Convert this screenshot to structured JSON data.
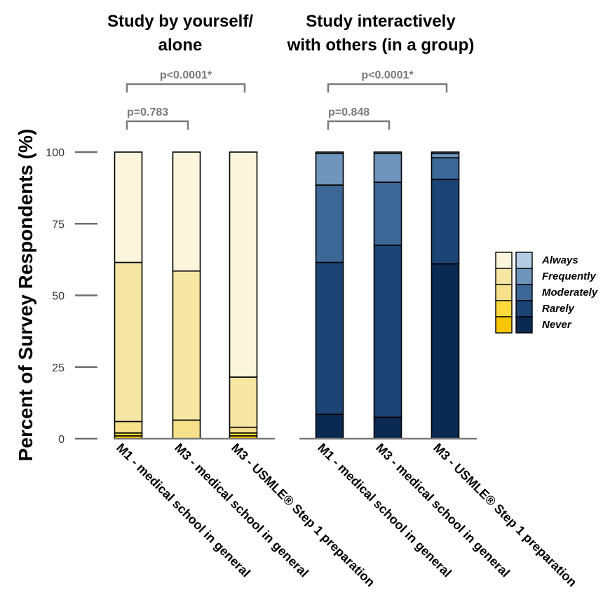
{
  "chart_data": {
    "type": "bar",
    "stacked": true,
    "ylabel": "Percent of Survey Respondents (%)",
    "yticks": [
      0,
      25,
      50,
      75,
      100
    ],
    "ylim": [
      0,
      100
    ],
    "categories": [
      "M1 - medical school in general",
      "M3 - medical school in general",
      "M3 - USMLE® Step 1 preparation"
    ],
    "levels": [
      "Never",
      "Rarely",
      "Moderately",
      "Frequently",
      "Always"
    ],
    "legend_position": "right",
    "panels": [
      {
        "title_lines": [
          "Study by yourself/",
          "alone"
        ],
        "comparisons": [
          {
            "label": "p=0.783",
            "from": 0,
            "to": 1
          },
          {
            "label": "p<0.0001*",
            "from": 0,
            "to": 2
          }
        ],
        "colors": [
          "#f7c600",
          "#fbd93c",
          "#f6e08a",
          "#f6e6a3",
          "#fbf5dd"
        ],
        "series": [
          {
            "name": "Never",
            "values": [
              1,
              0,
              1
            ]
          },
          {
            "name": "Rarely",
            "values": [
              1,
              0,
              1
            ]
          },
          {
            "name": "Moderately",
            "values": [
              4,
              6.5,
              2
            ]
          },
          {
            "name": "Frequently",
            "values": [
              55.5,
              52,
              17.5
            ]
          },
          {
            "name": "Always",
            "values": [
              38.5,
              41.5,
              78.5
            ]
          }
        ]
      },
      {
        "title_lines": [
          "Study interactively",
          "with others (in a group)"
        ],
        "comparisons": [
          {
            "label": "p=0.848",
            "from": 0,
            "to": 1
          },
          {
            "label": "p<0.0001*",
            "from": 0,
            "to": 2
          }
        ],
        "colors": [
          "#0b2a52",
          "#1b4474",
          "#3c6796",
          "#6f95bd",
          "#b3cbe3"
        ],
        "series": [
          {
            "name": "Never",
            "values": [
              8.5,
              7.5,
              61
            ]
          },
          {
            "name": "Rarely",
            "values": [
              53,
              60,
              29.5
            ]
          },
          {
            "name": "Moderately",
            "values": [
              27,
              22,
              7.5
            ]
          },
          {
            "name": "Frequently",
            "values": [
              11,
              10,
              1.5
            ]
          },
          {
            "name": "Always",
            "values": [
              0.5,
              0.5,
              0.5
            ]
          }
        ]
      }
    ]
  }
}
